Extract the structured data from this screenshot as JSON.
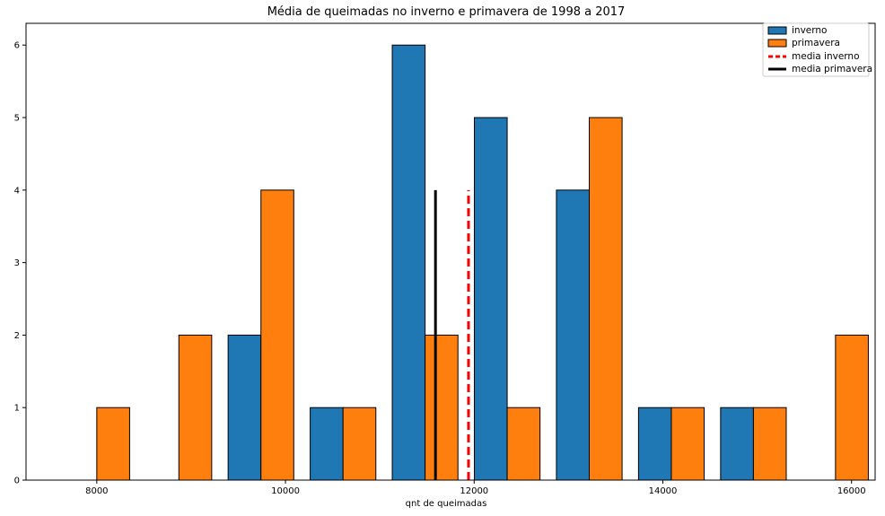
{
  "chart_data": {
    "type": "bar",
    "title": "Média de queimadas no inverno e primavera de 1998 a 2017",
    "xlabel": "qnt de queimadas",
    "ylabel": "",
    "xlim": [
      7250,
      16250
    ],
    "ylim": [
      0,
      6.3
    ],
    "x_ticks": [
      8000,
      10000,
      12000,
      14000,
      16000
    ],
    "y_ticks": [
      0,
      1,
      2,
      3,
      4,
      5,
      6
    ],
    "grid": false,
    "legend_position": "top-right",
    "bin_centers": [
      8000,
      8870,
      9740,
      10610,
      11480,
      12350,
      13220,
      14090,
      14960,
      15830
    ],
    "bar_width": 348,
    "series": [
      {
        "name": "inverno",
        "color": "#1f77b4",
        "offset": -174,
        "values": [
          0,
          0,
          2,
          1,
          6,
          5,
          4,
          1,
          1,
          0
        ]
      },
      {
        "name": "primavera",
        "color": "#ff7f0e",
        "offset": 174,
        "values": [
          1,
          2,
          4,
          1,
          2,
          1,
          5,
          1,
          1,
          2
        ]
      }
    ],
    "reference_lines": [
      {
        "name": "media inverno",
        "x": 11940,
        "y_max": 4,
        "color": "#ff0000",
        "style": "dashed"
      },
      {
        "name": "media primavera",
        "x": 11590,
        "y_max": 4,
        "color": "#000000",
        "style": "solid"
      }
    ]
  }
}
